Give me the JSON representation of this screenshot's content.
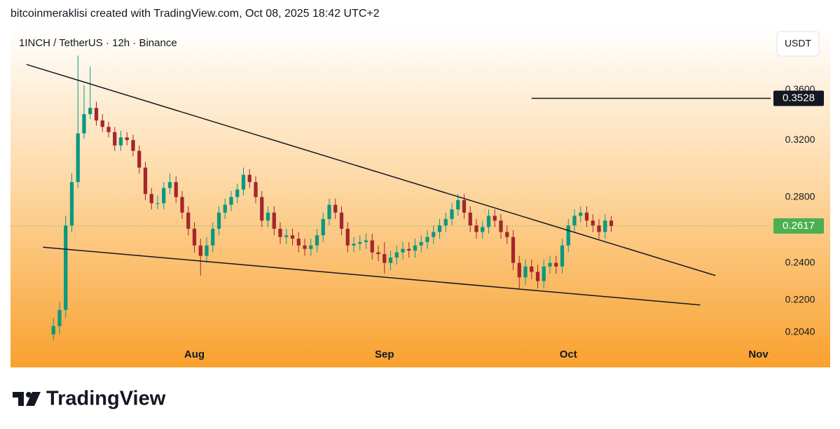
{
  "chart_data": {
    "type": "candlestick",
    "header": "bitcoinmeraklisi created with TradingView.com, Oct 08, 2025 18:42 UTC+2",
    "title": "1INCH / TetherUS · 12h · Binance",
    "currency": "USDT",
    "brand": "TradingView",
    "log_scale": true,
    "up_color": "#089981",
    "down_color": "#a3262e",
    "x": [
      8,
      9,
      10,
      11,
      12,
      13,
      14,
      15,
      16,
      17,
      18,
      19,
      20,
      21,
      22,
      23,
      24,
      25,
      26,
      27,
      28,
      29,
      30,
      31,
      32,
      33,
      34,
      35,
      36,
      37,
      38,
      39,
      40,
      41,
      42,
      43,
      44,
      45,
      46,
      47,
      48,
      49,
      50,
      51,
      52,
      53,
      54,
      55,
      56,
      57,
      58,
      59,
      60,
      61,
      62,
      63,
      64,
      65,
      66,
      67,
      68,
      69,
      70,
      71,
      72,
      73,
      74,
      75,
      76,
      77,
      78,
      79,
      80,
      81,
      82,
      83,
      84,
      85,
      86,
      87,
      88,
      89,
      90,
      91,
      92,
      93,
      94,
      95,
      96,
      97,
      98,
      99
    ],
    "open": [
      0.203,
      0.207,
      0.215,
      0.262,
      0.29,
      0.325,
      0.34,
      0.345,
      0.335,
      0.33,
      0.326,
      0.316,
      0.322,
      0.32,
      0.312,
      0.3,
      0.282,
      0.276,
      0.276,
      0.286,
      0.29,
      0.28,
      0.27,
      0.26,
      0.25,
      0.244,
      0.25,
      0.26,
      0.27,
      0.275,
      0.28,
      0.285,
      0.295,
      0.29,
      0.28,
      0.265,
      0.27,
      0.26,
      0.255,
      0.256,
      0.254,
      0.25,
      0.248,
      0.25,
      0.256,
      0.266,
      0.275,
      0.27,
      0.26,
      0.25,
      0.251,
      0.252,
      0.253,
      0.246,
      0.245,
      0.24,
      0.243,
      0.246,
      0.248,
      0.247,
      0.25,
      0.252,
      0.255,
      0.258,
      0.262,
      0.266,
      0.272,
      0.278,
      0.27,
      0.262,
      0.258,
      0.261,
      0.268,
      0.265,
      0.258,
      0.255,
      0.24,
      0.232,
      0.238,
      0.235,
      0.23,
      0.238,
      0.24,
      0.238,
      0.25,
      0.262,
      0.268,
      0.27,
      0.265,
      0.262,
      0.258,
      0.265
    ],
    "high": [
      0.211,
      0.219,
      0.268,
      0.296,
      0.39,
      0.364,
      0.38,
      0.35,
      0.34,
      0.334,
      0.33,
      0.327,
      0.326,
      0.324,
      0.316,
      0.304,
      0.286,
      0.281,
      0.29,
      0.296,
      0.294,
      0.284,
      0.274,
      0.264,
      0.254,
      0.255,
      0.264,
      0.274,
      0.279,
      0.284,
      0.289,
      0.3,
      0.299,
      0.294,
      0.284,
      0.274,
      0.274,
      0.264,
      0.26,
      0.26,
      0.258,
      0.254,
      0.254,
      0.26,
      0.27,
      0.279,
      0.279,
      0.274,
      0.264,
      0.255,
      0.256,
      0.257,
      0.257,
      0.25,
      0.252,
      0.247,
      0.25,
      0.252,
      0.252,
      0.254,
      0.256,
      0.259,
      0.262,
      0.266,
      0.27,
      0.276,
      0.282,
      0.282,
      0.274,
      0.266,
      0.265,
      0.272,
      0.272,
      0.269,
      0.262,
      0.259,
      0.244,
      0.242,
      0.242,
      0.239,
      0.242,
      0.244,
      0.244,
      0.254,
      0.266,
      0.272,
      0.274,
      0.274,
      0.269,
      0.266,
      0.269,
      0.268
    ],
    "low": [
      0.2,
      0.203,
      0.211,
      0.258,
      0.286,
      0.321,
      0.336,
      0.331,
      0.326,
      0.322,
      0.312,
      0.312,
      0.316,
      0.308,
      0.296,
      0.278,
      0.272,
      0.272,
      0.272,
      0.282,
      0.276,
      0.266,
      0.256,
      0.246,
      0.233,
      0.24,
      0.246,
      0.256,
      0.266,
      0.271,
      0.276,
      0.281,
      0.286,
      0.276,
      0.261,
      0.261,
      0.256,
      0.251,
      0.251,
      0.25,
      0.246,
      0.244,
      0.244,
      0.246,
      0.252,
      0.262,
      0.266,
      0.256,
      0.246,
      0.246,
      0.247,
      0.248,
      0.242,
      0.241,
      0.234,
      0.236,
      0.239,
      0.242,
      0.243,
      0.243,
      0.246,
      0.248,
      0.251,
      0.254,
      0.258,
      0.262,
      0.268,
      0.266,
      0.258,
      0.254,
      0.254,
      0.257,
      0.261,
      0.254,
      0.251,
      0.236,
      0.226,
      0.228,
      0.231,
      0.226,
      0.226,
      0.234,
      0.234,
      0.234,
      0.246,
      0.258,
      0.264,
      0.261,
      0.258,
      0.254,
      0.254,
      0.258
    ],
    "close": [
      0.207,
      0.215,
      0.262,
      0.29,
      0.325,
      0.34,
      0.345,
      0.335,
      0.33,
      0.326,
      0.316,
      0.322,
      0.32,
      0.312,
      0.3,
      0.282,
      0.276,
      0.276,
      0.286,
      0.29,
      0.28,
      0.27,
      0.26,
      0.25,
      0.244,
      0.25,
      0.26,
      0.27,
      0.275,
      0.28,
      0.285,
      0.295,
      0.29,
      0.28,
      0.265,
      0.27,
      0.26,
      0.255,
      0.256,
      0.254,
      0.25,
      0.248,
      0.25,
      0.256,
      0.266,
      0.275,
      0.27,
      0.26,
      0.25,
      0.251,
      0.252,
      0.253,
      0.246,
      0.245,
      0.24,
      0.243,
      0.246,
      0.248,
      0.247,
      0.25,
      0.252,
      0.255,
      0.258,
      0.262,
      0.266,
      0.272,
      0.278,
      0.27,
      0.262,
      0.258,
      0.261,
      0.268,
      0.265,
      0.258,
      0.255,
      0.24,
      0.232,
      0.238,
      0.235,
      0.23,
      0.238,
      0.24,
      0.238,
      0.25,
      0.262,
      0.268,
      0.27,
      0.265,
      0.262,
      0.258,
      0.265,
      0.2617
    ],
    "xlim": [
      1,
      125
    ],
    "xticks": [
      {
        "value": 31,
        "label": "Aug"
      },
      {
        "value": 62,
        "label": "Sep"
      },
      {
        "value": 92,
        "label": "Oct"
      },
      {
        "value": 123,
        "label": "Nov"
      }
    ],
    "ylim": [
      0.199,
      0.416
    ],
    "yticks": [
      {
        "value": 0.204,
        "label": "0.2040"
      },
      {
        "value": 0.22,
        "label": "0.2200"
      },
      {
        "value": 0.24,
        "label": "0.2400"
      },
      {
        "value": 0.28,
        "label": "0.2800"
      },
      {
        "value": 0.32,
        "label": "0.3200"
      },
      {
        "value": 0.36,
        "label": "0.3600"
      }
    ],
    "trendlines": [
      {
        "x": [
          3.6,
          116
        ],
        "y": [
          0.382,
          0.233
        ]
      },
      {
        "x": [
          6.3,
          113.5
        ],
        "y": [
          0.249,
          0.2175
        ]
      },
      {
        "x": [
          86,
          125
        ],
        "y": [
          0.3528,
          0.3528
        ]
      }
    ],
    "level_price": 0.3528,
    "last_price": 0.2617,
    "last_price_color": "#4caf50"
  }
}
